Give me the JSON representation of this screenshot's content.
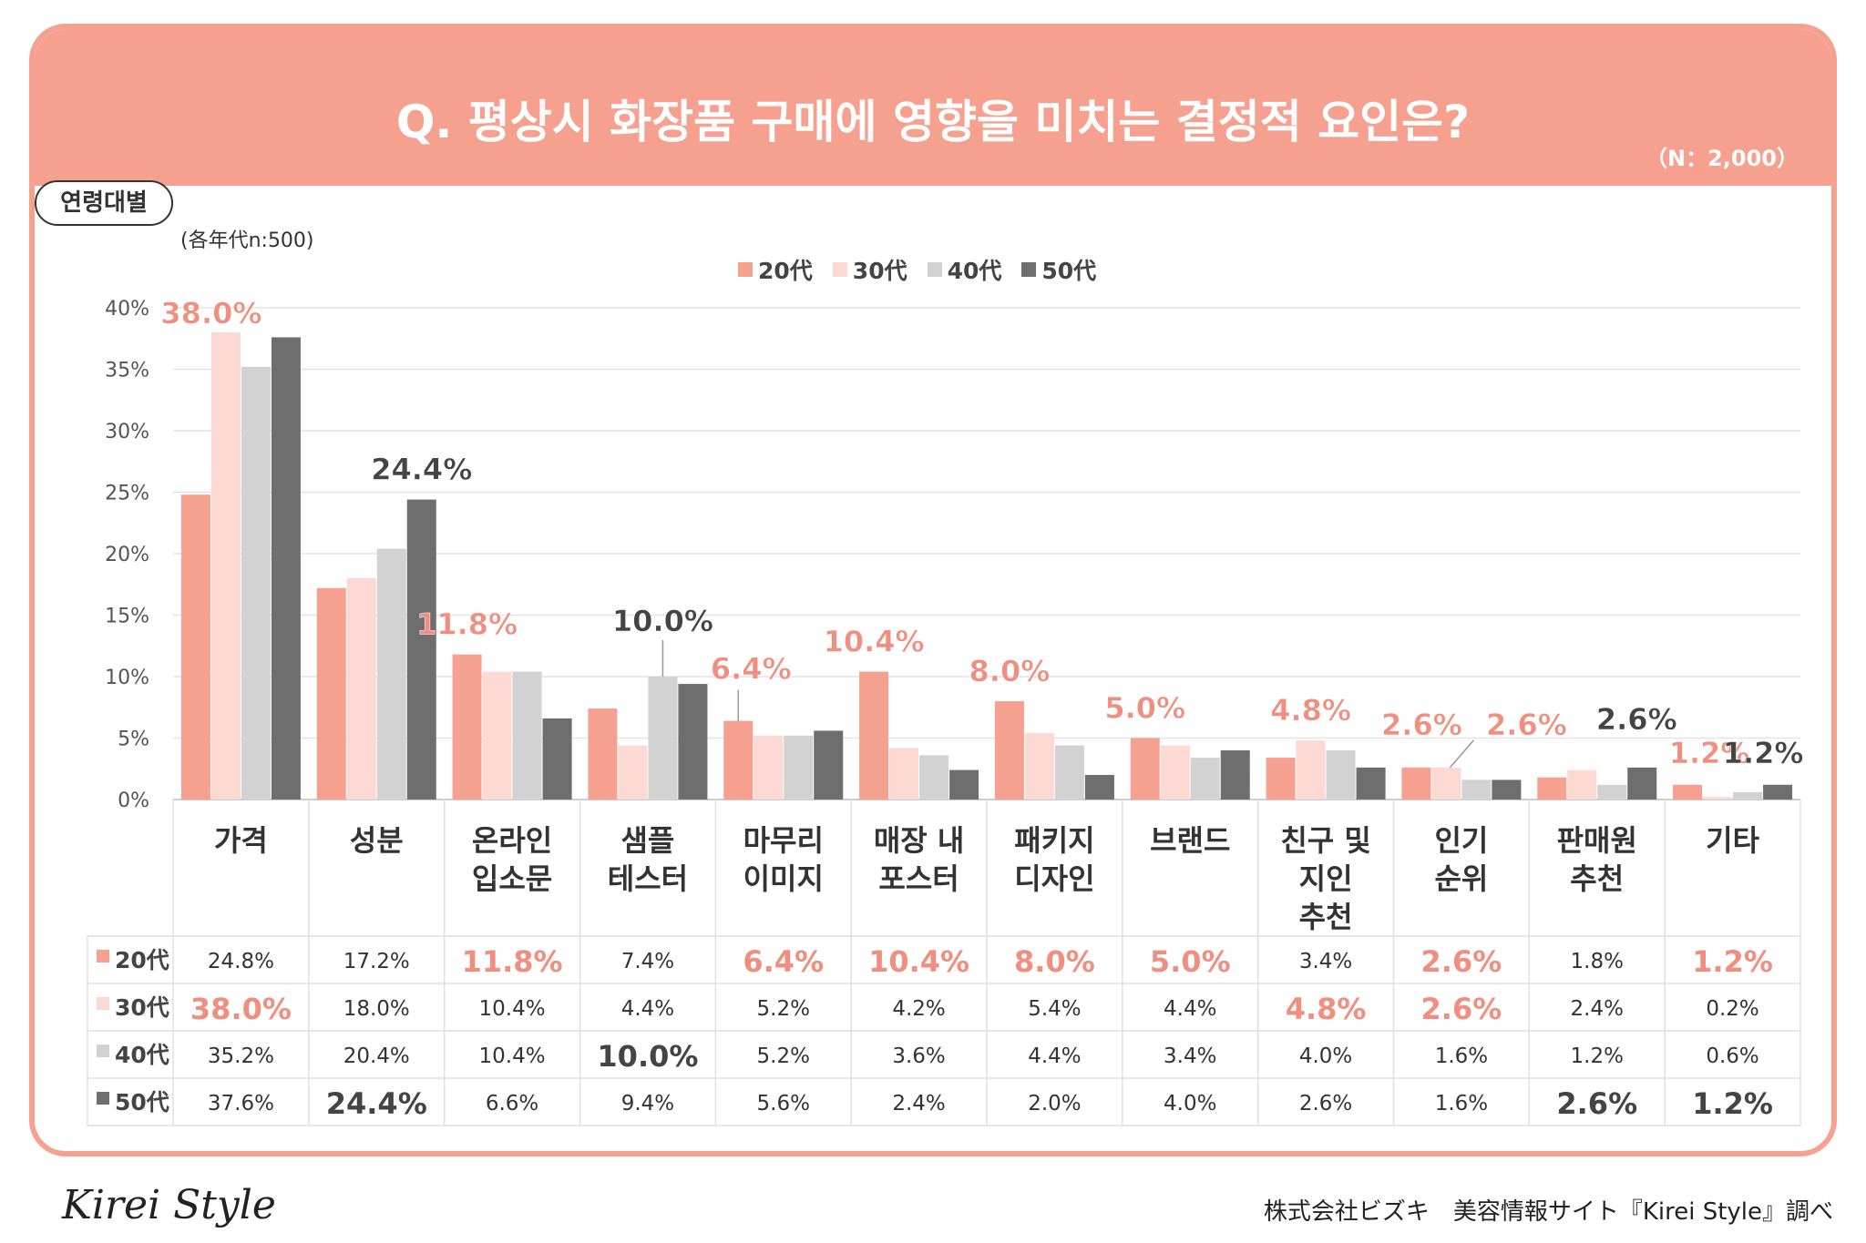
{
  "header": {
    "title": "Q. 평상시 화장품 구매에 영향을 미치는 결정적 요인은?",
    "n_note": "（N：2,000）"
  },
  "filter": {
    "pill_label": "연령대별",
    "pill_note": "(各年代n:500)"
  },
  "colors": {
    "20代": "#f6a090",
    "30代": "#fdd9d3",
    "40代": "#d2d2d2",
    "50代": "#6e6e6e",
    "accent": "#f08f80"
  },
  "chart_data": {
    "type": "bar",
    "categories": [
      "가격",
      "성분",
      "온라인 입소문",
      "샘플 테스터",
      "마무리 이미지",
      "매장 내 포스터",
      "패키지 디자인",
      "브랜드",
      "친구 및 지인 추천",
      "인기 순위",
      "판매원 추천",
      "기타"
    ],
    "category_lines": [
      [
        "가격"
      ],
      [
        "성분"
      ],
      [
        "온라인",
        "입소문"
      ],
      [
        "샘플",
        "테스터"
      ],
      [
        "마무리",
        "이미지"
      ],
      [
        "매장 내",
        "포스터"
      ],
      [
        "패키지",
        "디자인"
      ],
      [
        "브랜드"
      ],
      [
        "친구 및",
        "지인",
        "추천"
      ],
      [
        "인기",
        "순위"
      ],
      [
        "판매원",
        "추천"
      ],
      [
        "기타"
      ]
    ],
    "series": [
      {
        "name": "20代",
        "values": [
          24.8,
          17.2,
          11.8,
          7.4,
          6.4,
          10.4,
          8.0,
          5.0,
          3.4,
          2.6,
          1.8,
          1.2
        ]
      },
      {
        "name": "30代",
        "values": [
          38.0,
          18.0,
          10.4,
          4.4,
          5.2,
          4.2,
          5.4,
          4.4,
          4.8,
          2.6,
          2.4,
          0.2
        ]
      },
      {
        "name": "40代",
        "values": [
          35.2,
          20.4,
          10.4,
          10.0,
          5.2,
          3.6,
          4.4,
          3.4,
          4.0,
          1.6,
          1.2,
          0.6
        ]
      },
      {
        "name": "50代",
        "values": [
          37.6,
          24.4,
          6.6,
          9.4,
          5.6,
          2.4,
          2.0,
          4.0,
          2.6,
          1.6,
          2.6,
          1.2
        ]
      }
    ],
    "y_ticks": [
      "0%",
      "5%",
      "10%",
      "15%",
      "20%",
      "25%",
      "30%",
      "35%",
      "40%"
    ],
    "ylim": [
      0,
      40
    ],
    "grid": true,
    "legend_placement": "top-center",
    "highlights": [
      {
        "category": "가격",
        "series": "30代",
        "label": "38.0%"
      },
      {
        "category": "성분",
        "series": "50代",
        "label": "24.4%"
      },
      {
        "category": "온라인 입소문",
        "series": "20代",
        "label": "11.8%"
      },
      {
        "category": "샘플 테스터",
        "series": "40代",
        "label": "10.0%"
      },
      {
        "category": "마무리 이미지",
        "series": "20代",
        "label": "6.4%"
      },
      {
        "category": "매장 내 포스터",
        "series": "20代",
        "label": "10.4%"
      },
      {
        "category": "패키지 디자인",
        "series": "20代",
        "label": "8.0%"
      },
      {
        "category": "브랜드",
        "series": "20代",
        "label": "5.0%"
      },
      {
        "category": "친구 및 지인 추천",
        "series": "30代",
        "label": "4.8%"
      },
      {
        "category": "인기 순위",
        "series": "20代",
        "label": "2.6%"
      },
      {
        "category": "인기 순위",
        "series": "30代",
        "label": "2.6%"
      },
      {
        "category": "판매원 추천",
        "series": "50代",
        "label": "2.6%"
      },
      {
        "category": "기타",
        "series": "20代",
        "label": "1.2%"
      },
      {
        "category": "기타",
        "series": "50代",
        "label": "1.2%"
      }
    ],
    "table": {
      "rows": [
        {
          "series": "20代",
          "cells": [
            "24.8%",
            "17.2%",
            "11.8%",
            "7.4%",
            "6.4%",
            "10.4%",
            "8.0%",
            "5.0%",
            "3.4%",
            "2.6%",
            "1.8%",
            "1.2%"
          ]
        },
        {
          "series": "30代",
          "cells": [
            "38.0%",
            "18.0%",
            "10.4%",
            "4.4%",
            "5.2%",
            "4.2%",
            "5.4%",
            "4.4%",
            "4.8%",
            "2.6%",
            "2.4%",
            "0.2%"
          ]
        },
        {
          "series": "40代",
          "cells": [
            "35.2%",
            "20.4%",
            "10.4%",
            "10.0%",
            "5.2%",
            "3.6%",
            "4.4%",
            "3.4%",
            "4.0%",
            "1.6%",
            "1.2%",
            "0.6%"
          ]
        },
        {
          "series": "50代",
          "cells": [
            "37.6%",
            "24.4%",
            "6.6%",
            "9.4%",
            "5.6%",
            "2.4%",
            "2.0%",
            "4.0%",
            "2.6%",
            "1.6%",
            "2.6%",
            "1.2%"
          ]
        }
      ]
    }
  },
  "footer": {
    "logo": "Kirei Style",
    "credit": "株式会社ビズキ　美容情報サイト『Kirei Style』調べ"
  }
}
